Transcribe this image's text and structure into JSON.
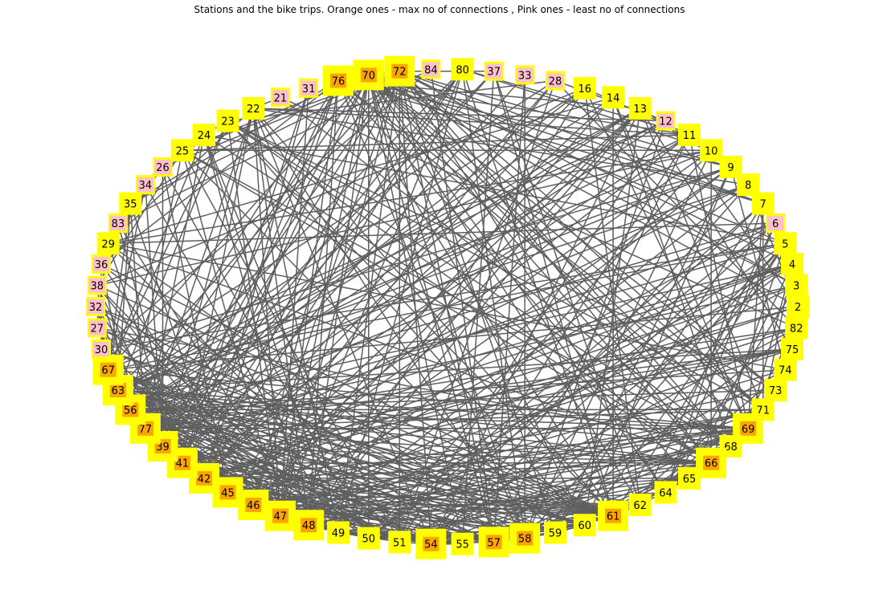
{
  "title": "Stations and the bike trips. Orange ones - max no of connections , Pink ones - least no of connections",
  "colors": {
    "halo": "#ffff00",
    "orange": "#ffa500",
    "pink": "#ffc0cb",
    "default": "#ffff00",
    "edge": "#5f5f5f",
    "text": "#000000"
  },
  "nodes": [
    {
      "label": "2",
      "group": "default"
    },
    {
      "label": "82",
      "group": "default"
    },
    {
      "label": "75",
      "group": "default"
    },
    {
      "label": "74",
      "group": "default"
    },
    {
      "label": "73",
      "group": "default"
    },
    {
      "label": "71",
      "group": "default"
    },
    {
      "label": "69",
      "group": "orange"
    },
    {
      "label": "68",
      "group": "default"
    },
    {
      "label": "66",
      "group": "orange"
    },
    {
      "label": "65",
      "group": "default"
    },
    {
      "label": "64",
      "group": "default"
    },
    {
      "label": "62",
      "group": "default"
    },
    {
      "label": "61",
      "group": "orange"
    },
    {
      "label": "60",
      "group": "default"
    },
    {
      "label": "59",
      "group": "default"
    },
    {
      "label": "58",
      "group": "orange"
    },
    {
      "label": "57",
      "group": "orange"
    },
    {
      "label": "55",
      "group": "default"
    },
    {
      "label": "54",
      "group": "orange"
    },
    {
      "label": "51",
      "group": "default"
    },
    {
      "label": "50",
      "group": "default"
    },
    {
      "label": "49",
      "group": "default"
    },
    {
      "label": "48",
      "group": "orange"
    },
    {
      "label": "47",
      "group": "orange"
    },
    {
      "label": "46",
      "group": "orange"
    },
    {
      "label": "45",
      "group": "orange"
    },
    {
      "label": "42",
      "group": "orange"
    },
    {
      "label": "41",
      "group": "orange"
    },
    {
      "label": "39",
      "group": "orange"
    },
    {
      "label": "77",
      "group": "orange"
    },
    {
      "label": "56",
      "group": "orange"
    },
    {
      "label": "63",
      "group": "orange"
    },
    {
      "label": "67",
      "group": "orange"
    },
    {
      "label": "30",
      "group": "pink"
    },
    {
      "label": "27",
      "group": "pink"
    },
    {
      "label": "32",
      "group": "pink"
    },
    {
      "label": "38",
      "group": "pink"
    },
    {
      "label": "36",
      "group": "pink"
    },
    {
      "label": "29",
      "group": "default"
    },
    {
      "label": "83",
      "group": "pink"
    },
    {
      "label": "35",
      "group": "default"
    },
    {
      "label": "34",
      "group": "pink"
    },
    {
      "label": "26",
      "group": "pink"
    },
    {
      "label": "25",
      "group": "default"
    },
    {
      "label": "24",
      "group": "default"
    },
    {
      "label": "23",
      "group": "default"
    },
    {
      "label": "22",
      "group": "default"
    },
    {
      "label": "21",
      "group": "pink"
    },
    {
      "label": "31",
      "group": "pink"
    },
    {
      "label": "76",
      "group": "orange"
    },
    {
      "label": "70",
      "group": "orange"
    },
    {
      "label": "72",
      "group": "orange"
    },
    {
      "label": "84",
      "group": "pink"
    },
    {
      "label": "80",
      "group": "default"
    },
    {
      "label": "37",
      "group": "pink"
    },
    {
      "label": "33",
      "group": "pink"
    },
    {
      "label": "28",
      "group": "pink"
    },
    {
      "label": "16",
      "group": "default"
    },
    {
      "label": "14",
      "group": "default"
    },
    {
      "label": "13",
      "group": "default"
    },
    {
      "label": "12",
      "group": "pink"
    },
    {
      "label": "11",
      "group": "default"
    },
    {
      "label": "10",
      "group": "default"
    },
    {
      "label": "9",
      "group": "default"
    },
    {
      "label": "8",
      "group": "default"
    },
    {
      "label": "7",
      "group": "default"
    },
    {
      "label": "6",
      "group": "pink"
    },
    {
      "label": "5",
      "group": "default"
    },
    {
      "label": "4",
      "group": "default"
    },
    {
      "label": "3",
      "group": "default"
    }
  ]
}
